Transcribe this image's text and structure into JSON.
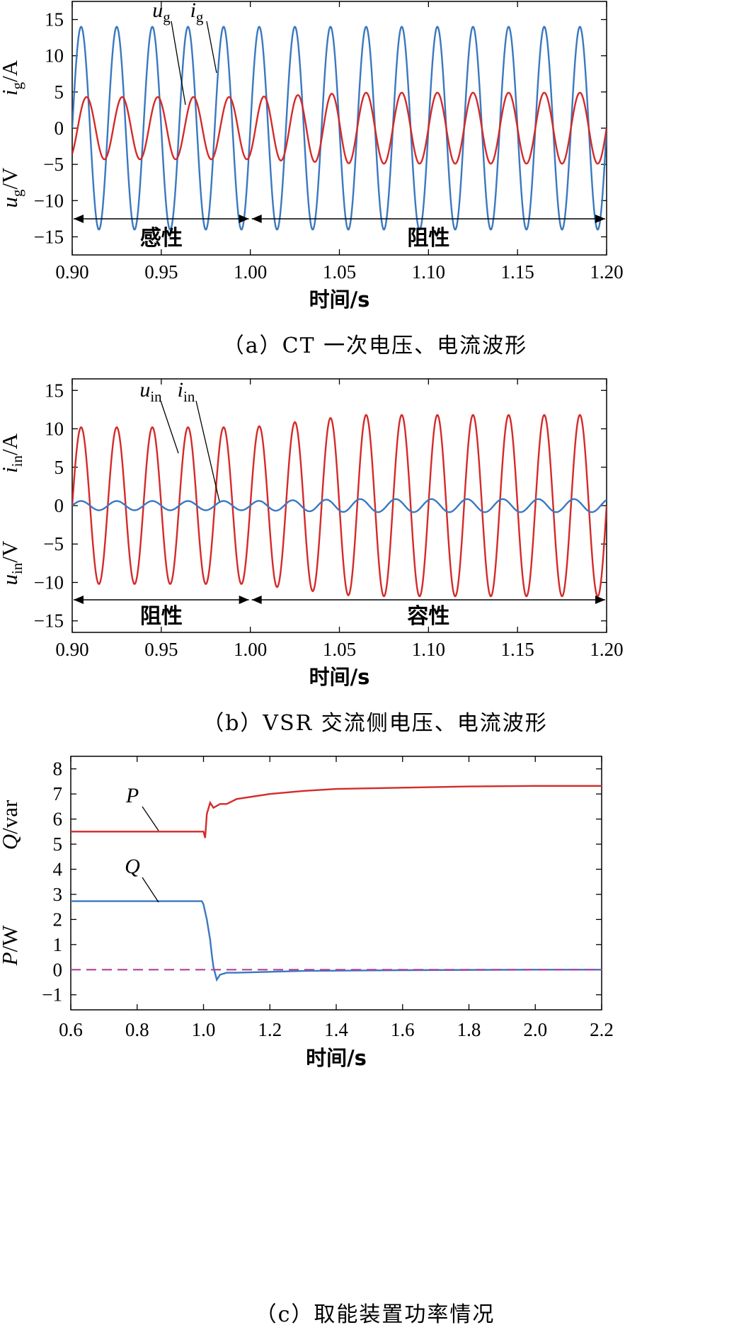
{
  "colors": {
    "red": "#d42a2a",
    "blue": "#3a78c0",
    "purple": "#b0409a"
  },
  "chart_data": [
    {
      "type": "line",
      "caption": "（a）CT 一次电压、电流波形",
      "xlabel": "时间/s",
      "ylabel_top": [
        "i",
        "g",
        "/A"
      ],
      "ylabel_bottom": [
        "u",
        "g",
        "/V"
      ],
      "xlim": [
        0.9,
        1.2
      ],
      "ylim": [
        -17.5,
        17.5
      ],
      "xticks": [
        "0.90",
        "0.95",
        "1.00",
        "1.05",
        "1.10",
        "1.15",
        "1.20"
      ],
      "yticks": [
        "15",
        "10",
        "5",
        "0",
        "−5",
        "−10",
        "−15"
      ],
      "regions": [
        {
          "label": "感性",
          "from": 0.9,
          "to": 1.0
        },
        {
          "label": "阻性",
          "from": 1.0,
          "to": 1.2
        }
      ],
      "series": [
        {
          "name": "u_g",
          "label": [
            "u",
            "g"
          ],
          "color": "blue",
          "frequency_hz": 50,
          "phase_deg": 0,
          "amplitude_before": 14,
          "amplitude_after": 14
        },
        {
          "name": "i_g",
          "label": [
            "i",
            "g"
          ],
          "color": "red",
          "frequency_hz": 50,
          "phase_deg_before": -55,
          "phase_deg_after": 0,
          "amplitude_before": 4.3,
          "amplitude_after": 4.9
        }
      ]
    },
    {
      "type": "line",
      "caption": "（b）VSR 交流侧电压、电流波形",
      "xlabel": "时间/s",
      "ylabel_top": [
        "i",
        "in",
        "/A"
      ],
      "ylabel_bottom": [
        "u",
        "in",
        "/V"
      ],
      "xlim": [
        0.9,
        1.2
      ],
      "ylim": [
        -16.5,
        16.5
      ],
      "xticks": [
        "0.90",
        "0.95",
        "1.00",
        "1.05",
        "1.10",
        "1.15",
        "1.20"
      ],
      "yticks": [
        "15",
        "10",
        "5",
        "0",
        "−5",
        "−10",
        "−15"
      ],
      "regions": [
        {
          "label": "阻性",
          "from": 0.9,
          "to": 1.0
        },
        {
          "label": "容性",
          "from": 1.0,
          "to": 1.2
        }
      ],
      "series": [
        {
          "name": "u_in",
          "label": [
            "u",
            "in"
          ],
          "color": "red",
          "frequency_hz": 50,
          "phase_deg": 0,
          "amplitude_before": 10.2,
          "amplitude_after": 11.8
        },
        {
          "name": "i_in",
          "label": [
            "i",
            "in"
          ],
          "color": "blue",
          "frequency_hz": 50,
          "phase_deg_before": 0,
          "phase_deg_after": 60,
          "amplitude_before": 0.6,
          "amplitude_after": 0.85
        }
      ]
    },
    {
      "type": "line",
      "caption": "（c）取能装置功率情况",
      "xlabel": "时间/s",
      "ylabel_top": [
        "Q",
        "",
        "/var"
      ],
      "ylabel_bottom": [
        "P",
        "",
        "/W"
      ],
      "xlim": [
        0.6,
        2.2
      ],
      "ylim": [
        -1.6,
        8.5
      ],
      "xticks": [
        "0.6",
        "0.8",
        "1.0",
        "1.2",
        "1.4",
        "1.6",
        "1.8",
        "2.0",
        "2.2"
      ],
      "yticks": [
        "8",
        "7",
        "6",
        "5",
        "4",
        "3",
        "2",
        "1",
        "0",
        "−1"
      ],
      "series": [
        {
          "name": "P",
          "label": "P",
          "color": "red",
          "x": [
            0.6,
            1.0,
            1.005,
            1.01,
            1.02,
            1.03,
            1.05,
            1.07,
            1.1,
            1.2,
            1.3,
            1.4,
            1.6,
            1.8,
            2.0,
            2.2
          ],
          "y": [
            5.5,
            5.5,
            5.25,
            6.2,
            6.65,
            6.45,
            6.6,
            6.6,
            6.8,
            7.0,
            7.12,
            7.2,
            7.25,
            7.3,
            7.32,
            7.32
          ]
        },
        {
          "name": "Q",
          "label": "Q",
          "color": "blue",
          "x": [
            0.6,
            0.995,
            1.0,
            1.01,
            1.02,
            1.025,
            1.03,
            1.04,
            1.05,
            1.07,
            1.1,
            1.3,
            1.6,
            2.0,
            2.2
          ],
          "y": [
            2.73,
            2.73,
            2.6,
            2.0,
            1.2,
            0.6,
            0.1,
            -0.4,
            -0.2,
            -0.12,
            -0.12,
            -0.05,
            -0.02,
            0.0,
            0.0
          ]
        },
        {
          "name": "reference",
          "color": "purple",
          "dashed": true,
          "x": [
            0.6,
            2.2
          ],
          "y": [
            0,
            0
          ]
        }
      ]
    }
  ]
}
